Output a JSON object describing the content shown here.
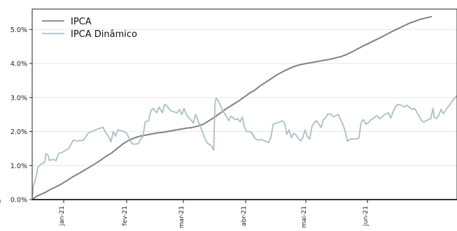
{
  "chart_data": {
    "type": "line",
    "title": "",
    "xlabel": "",
    "ylabel": "",
    "x_tick_labels": [
      "ez-20",
      "jan-21",
      "fev-21",
      "mar-21",
      "abr-21",
      "mai-21",
      "jun-21"
    ],
    "y_tick_labels": [
      "0.0%",
      "1.0%",
      "2.0%",
      "3.0%",
      "4.0%",
      "5.0%"
    ],
    "ylim": [
      0,
      0.056
    ],
    "grid": "horizontal",
    "legend_position": "top-left",
    "colors": {
      "IPCA": "#808080",
      "IPCA Dinâmico": "#a9bfc8",
      "zero_line": "#000000",
      "grid": "#e6e6e6"
    },
    "series": [
      {
        "name": "IPCA",
        "points": [
          [
            0,
            0.0
          ],
          [
            4,
            0.001
          ],
          [
            8,
            0.0016
          ],
          [
            12,
            0.0022
          ],
          [
            16,
            0.003
          ],
          [
            20,
            0.0036
          ],
          [
            25,
            0.0045
          ],
          [
            30,
            0.0055
          ],
          [
            35,
            0.0066
          ],
          [
            40,
            0.0075
          ],
          [
            45,
            0.0085
          ],
          [
            50,
            0.0095
          ],
          [
            55,
            0.0105
          ],
          [
            60,
            0.0116
          ],
          [
            65,
            0.0128
          ],
          [
            70,
            0.0138
          ],
          [
            75,
            0.0152
          ],
          [
            80,
            0.0165
          ],
          [
            85,
            0.0175
          ],
          [
            90,
            0.0182
          ],
          [
            95,
            0.0187
          ],
          [
            100,
            0.019
          ],
          [
            105,
            0.0193
          ],
          [
            110,
            0.0196
          ],
          [
            115,
            0.0198
          ],
          [
            120,
            0.0201
          ],
          [
            125,
            0.0204
          ],
          [
            130,
            0.0207
          ],
          [
            135,
            0.021
          ],
          [
            140,
            0.0212
          ],
          [
            145,
            0.0216
          ],
          [
            150,
            0.0222
          ],
          [
            155,
            0.0232
          ],
          [
            160,
            0.0243
          ],
          [
            165,
            0.0255
          ],
          [
            170,
            0.0267
          ],
          [
            175,
            0.0278
          ],
          [
            180,
            0.0288
          ],
          [
            185,
            0.03
          ],
          [
            190,
            0.0312
          ],
          [
            195,
            0.0322
          ],
          [
            200,
            0.0335
          ],
          [
            205,
            0.0346
          ],
          [
            210,
            0.0357
          ],
          [
            215,
            0.0368
          ],
          [
            220,
            0.0377
          ],
          [
            225,
            0.0385
          ],
          [
            230,
            0.0392
          ],
          [
            235,
            0.0397
          ],
          [
            240,
            0.04
          ],
          [
            245,
            0.0403
          ],
          [
            250,
            0.0406
          ],
          [
            255,
            0.0409
          ],
          [
            260,
            0.0412
          ],
          [
            265,
            0.0416
          ],
          [
            270,
            0.042
          ],
          [
            275,
            0.0426
          ],
          [
            280,
            0.0434
          ],
          [
            285,
            0.0443
          ],
          [
            290,
            0.0452
          ],
          [
            295,
            0.046
          ],
          [
            300,
            0.0468
          ],
          [
            305,
            0.0476
          ],
          [
            310,
            0.0485
          ],
          [
            315,
            0.0494
          ],
          [
            320,
            0.0502
          ],
          [
            325,
            0.051
          ],
          [
            330,
            0.0518
          ],
          [
            335,
            0.0524
          ],
          [
            340,
            0.053
          ],
          [
            345,
            0.0534
          ],
          [
            350,
            0.0538
          ]
        ]
      },
      {
        "name": "IPCA Dinâmico",
        "points": [
          [
            0,
            0.0
          ],
          [
            1,
            0.004
          ],
          [
            3,
            0.006
          ],
          [
            5,
            0.0095
          ],
          [
            8,
            0.0105
          ],
          [
            11,
            0.011
          ],
          [
            12,
            0.0135
          ],
          [
            14,
            0.013
          ],
          [
            15,
            0.0115
          ],
          [
            18,
            0.0118
          ],
          [
            21,
            0.0115
          ],
          [
            23,
            0.0135
          ],
          [
            27,
            0.014
          ],
          [
            32,
            0.015
          ],
          [
            36,
            0.0175
          ],
          [
            40,
            0.0172
          ],
          [
            45,
            0.0175
          ],
          [
            49,
            0.0195
          ],
          [
            54,
            0.0203
          ],
          [
            58,
            0.0208
          ],
          [
            62,
            0.0213
          ],
          [
            64,
            0.0198
          ],
          [
            67,
            0.0185
          ],
          [
            69,
            0.017
          ],
          [
            71,
            0.02
          ],
          [
            73,
            0.0186
          ],
          [
            75,
            0.0205
          ],
          [
            79,
            0.0202
          ],
          [
            83,
            0.0194
          ],
          [
            86,
            0.0172
          ],
          [
            88,
            0.0163
          ],
          [
            91,
            0.0163
          ],
          [
            93,
            0.0165
          ],
          [
            95,
            0.0178
          ],
          [
            97,
            0.0185
          ],
          [
            99,
            0.0228
          ],
          [
            102,
            0.0232
          ],
          [
            104,
            0.0262
          ],
          [
            106,
            0.0268
          ],
          [
            109,
            0.0255
          ],
          [
            111,
            0.0272
          ],
          [
            114,
            0.0255
          ],
          [
            116,
            0.028
          ],
          [
            118,
            0.0275
          ],
          [
            121,
            0.0262
          ],
          [
            124,
            0.0258
          ],
          [
            127,
            0.0255
          ],
          [
            129,
            0.0265
          ],
          [
            131,
            0.025
          ],
          [
            133,
            0.0268
          ],
          [
            135,
            0.025
          ],
          [
            138,
            0.0238
          ],
          [
            141,
            0.0225
          ],
          [
            143,
            0.025
          ],
          [
            145,
            0.0235
          ],
          [
            147,
            0.0215
          ],
          [
            149,
            0.02
          ],
          [
            151,
            0.0182
          ],
          [
            153,
            0.0168
          ],
          [
            155,
            0.0162
          ],
          [
            157,
            0.0158
          ],
          [
            159,
            0.0145
          ],
          [
            160,
            0.028
          ],
          [
            161,
            0.0298
          ],
          [
            163,
            0.029
          ],
          [
            165,
            0.0275
          ],
          [
            167,
            0.026
          ],
          [
            170,
            0.0245
          ],
          [
            172,
            0.0232
          ],
          [
            174,
            0.0245
          ],
          [
            176,
            0.024
          ],
          [
            178,
            0.0235
          ],
          [
            180,
            0.0238
          ],
          [
            182,
            0.0228
          ],
          [
            184,
            0.0242
          ],
          [
            186,
            0.021
          ],
          [
            188,
            0.02
          ],
          [
            190,
            0.02
          ],
          [
            192,
            0.0198
          ],
          [
            195,
            0.018
          ],
          [
            198,
            0.0175
          ],
          [
            201,
            0.0176
          ],
          [
            204,
            0.0172
          ],
          [
            207,
            0.0168
          ],
          [
            209,
            0.0182
          ],
          [
            211,
            0.0222
          ],
          [
            214,
            0.0225
          ],
          [
            217,
            0.0228
          ],
          [
            219,
            0.0232
          ],
          [
            221,
            0.0225
          ],
          [
            223,
            0.0192
          ],
          [
            225,
            0.0205
          ],
          [
            227,
            0.0182
          ],
          [
            229,
            0.0195
          ],
          [
            231,
            0.019
          ],
          [
            233,
            0.018
          ],
          [
            235,
            0.0172
          ],
          [
            237,
            0.0182
          ],
          [
            239,
            0.0205
          ],
          [
            241,
            0.0185
          ],
          [
            243,
            0.0178
          ],
          [
            245,
            0.0215
          ],
          [
            247,
            0.0225
          ],
          [
            249,
            0.0232
          ],
          [
            251,
            0.0222
          ],
          [
            253,
            0.0212
          ],
          [
            255,
            0.0235
          ],
          [
            257,
            0.024
          ],
          [
            259,
            0.0252
          ],
          [
            262,
            0.025
          ],
          [
            264,
            0.0243
          ],
          [
            266,
            0.0247
          ],
          [
            268,
            0.025
          ],
          [
            270,
            0.0235
          ],
          [
            272,
            0.0222
          ],
          [
            274,
            0.0202
          ],
          [
            276,
            0.0172
          ],
          [
            279,
            0.0178
          ],
          [
            283,
            0.0178
          ],
          [
            286,
            0.018
          ],
          [
            288,
            0.0225
          ],
          [
            290,
            0.0235
          ],
          [
            292,
            0.0222
          ],
          [
            294,
            0.0225
          ],
          [
            297,
            0.0235
          ],
          [
            300,
            0.0242
          ],
          [
            302,
            0.0247
          ],
          [
            304,
            0.0238
          ],
          [
            306,
            0.0242
          ],
          [
            308,
            0.0248
          ],
          [
            310,
            0.0252
          ],
          [
            312,
            0.0255
          ],
          [
            314,
            0.024
          ],
          [
            316,
            0.0258
          ],
          [
            318,
            0.0272
          ],
          [
            320,
            0.028
          ],
          [
            323,
            0.0278
          ],
          [
            326,
            0.0272
          ],
          [
            328,
            0.0278
          ],
          [
            330,
            0.0272
          ],
          [
            333,
            0.0265
          ],
          [
            335,
            0.0268
          ],
          [
            337,
            0.0255
          ],
          [
            339,
            0.0245
          ],
          [
            341,
            0.0232
          ],
          [
            343,
            0.0228
          ],
          [
            345,
            0.0232
          ],
          [
            347,
            0.0235
          ],
          [
            349,
            0.0238
          ],
          [
            351,
            0.0268
          ],
          [
            352,
            0.0242
          ],
          [
            354,
            0.0238
          ],
          [
            356,
            0.0248
          ],
          [
            358,
            0.0265
          ],
          [
            360,
            0.0252
          ],
          [
            362,
            0.0262
          ],
          [
            364,
            0.0272
          ],
          [
            366,
            0.028
          ],
          [
            368,
            0.029
          ],
          [
            370,
            0.0298
          ],
          [
            372,
            0.0305
          ]
        ]
      }
    ]
  }
}
